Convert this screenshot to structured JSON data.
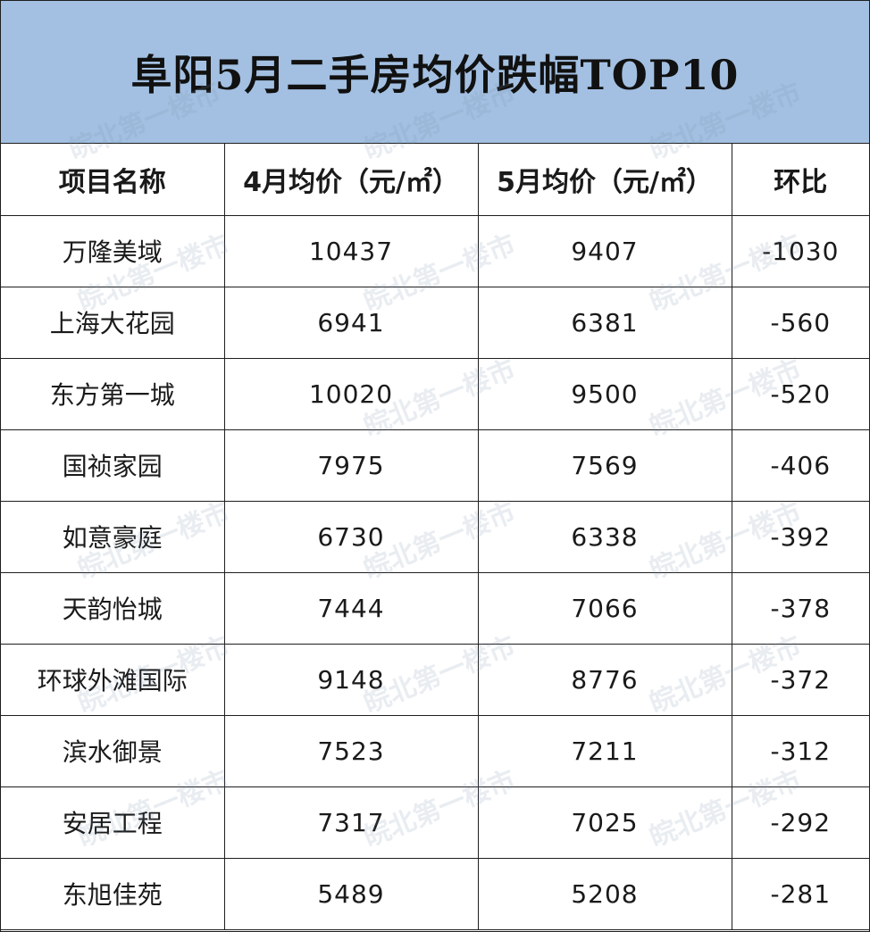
{
  "title": "阜阳5月二手房均价跌幅TOP10",
  "headers": [
    "项目名称",
    "4月均价（元/㎡）",
    "5月均价（元/㎡）",
    "环比"
  ],
  "rows": [
    {
      "name": "万隆美域",
      "april": "10437",
      "may": "9407",
      "change": "-1030"
    },
    {
      "name": "上海大花园",
      "april": "6941",
      "may": "6381",
      "change": "-560"
    },
    {
      "name": "东方第一城",
      "april": "10020",
      "may": "9500",
      "change": "-520"
    },
    {
      "name": "国祯家园",
      "april": "7975",
      "may": "7569",
      "change": "-406"
    },
    {
      "name": "如意豪庭",
      "april": "6730",
      "may": "6338",
      "change": "-392"
    },
    {
      "name": "天韵怡城",
      "april": "7444",
      "may": "7066",
      "change": "-378"
    },
    {
      "name": "环球外滩国际",
      "april": "9148",
      "may": "8776",
      "change": "-372"
    },
    {
      "name": "滨水御景",
      "april": "7523",
      "may": "7211",
      "change": "-312"
    },
    {
      "name": "安居工程",
      "april": "7317",
      "may": "7025",
      "change": "-292"
    },
    {
      "name": "东旭佳苑",
      "april": "5489",
      "may": "5208",
      "change": "-281"
    }
  ],
  "watermark": "皖北第一楼市",
  "colors": {
    "title_bg": "#a3c0e2",
    "border": "#1e1e1e"
  }
}
